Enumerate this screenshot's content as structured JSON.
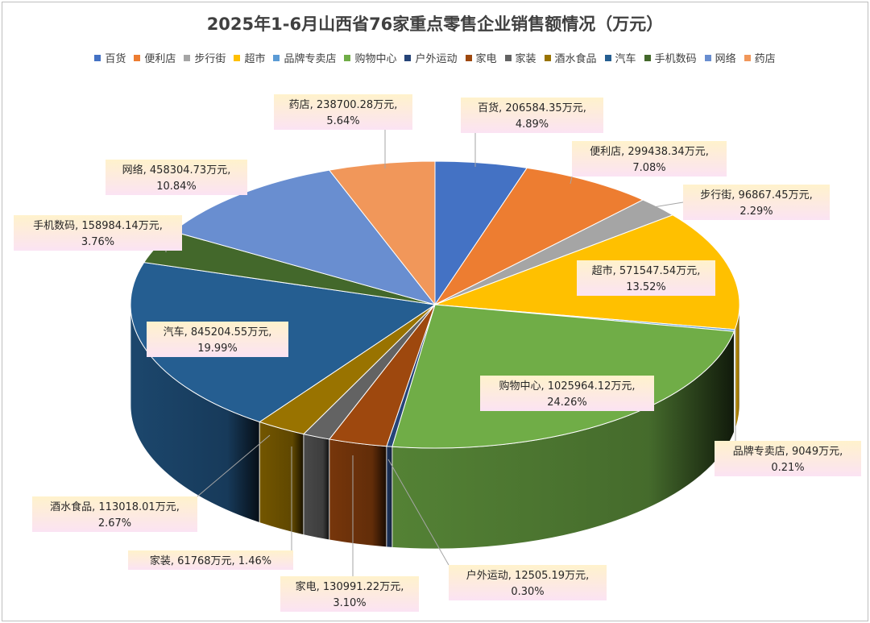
{
  "chart_data": {
    "type": "pie",
    "title": "2025年1-6月山西省76家重点零售企业销售额情况（万元）",
    "unit": "万元",
    "legend_position": "top",
    "slices": [
      {
        "name": "百货",
        "value": 206584.35,
        "value_text": "206584.35",
        "percent": "4.89%",
        "color": "#4472C4"
      },
      {
        "name": "便利店",
        "value": 299438.34,
        "value_text": "299438.34",
        "percent": "7.08%",
        "color": "#ED7D31"
      },
      {
        "name": "步行街",
        "value": 96867.45,
        "value_text": "96867.45",
        "percent": "2.29%",
        "color": "#A5A5A5"
      },
      {
        "name": "超市",
        "value": 571547.54,
        "value_text": "571547.54",
        "percent": "13.52%",
        "color": "#FFC000"
      },
      {
        "name": "品牌专卖店",
        "value": 9049,
        "value_text": "9049",
        "percent": "0.21%",
        "color": "#5B9BD5"
      },
      {
        "name": "购物中心",
        "value": 1025964.12,
        "value_text": "1025964.12",
        "percent": "24.26%",
        "color": "#70AD47"
      },
      {
        "name": "户外运动",
        "value": 12505.19,
        "value_text": "12505.19",
        "percent": "0.30%",
        "color": "#264478"
      },
      {
        "name": "家电",
        "value": 130991.22,
        "value_text": "130991.22",
        "percent": "3.10%",
        "color": "#9E480E"
      },
      {
        "name": "家装",
        "value": 61768,
        "value_text": "61768",
        "percent": "1.46%",
        "color": "#636363"
      },
      {
        "name": "酒水食品",
        "value": 113018.01,
        "value_text": "113018.01",
        "percent": "2.67%",
        "color": "#997300"
      },
      {
        "name": "汽车",
        "value": 845204.55,
        "value_text": "845204.55",
        "percent": "19.99%",
        "color": "#255E91"
      },
      {
        "name": "手机数码",
        "value": 158984.14,
        "value_text": "158984.14",
        "percent": "3.76%",
        "color": "#43682B"
      },
      {
        "name": "网络",
        "value": 458304.73,
        "value_text": "458304.73",
        "percent": "10.84%",
        "color": "#698ED0"
      },
      {
        "name": "药店",
        "value": 238700.28,
        "value_text": "238700.28",
        "percent": "5.64%",
        "color": "#F1975A"
      }
    ]
  }
}
